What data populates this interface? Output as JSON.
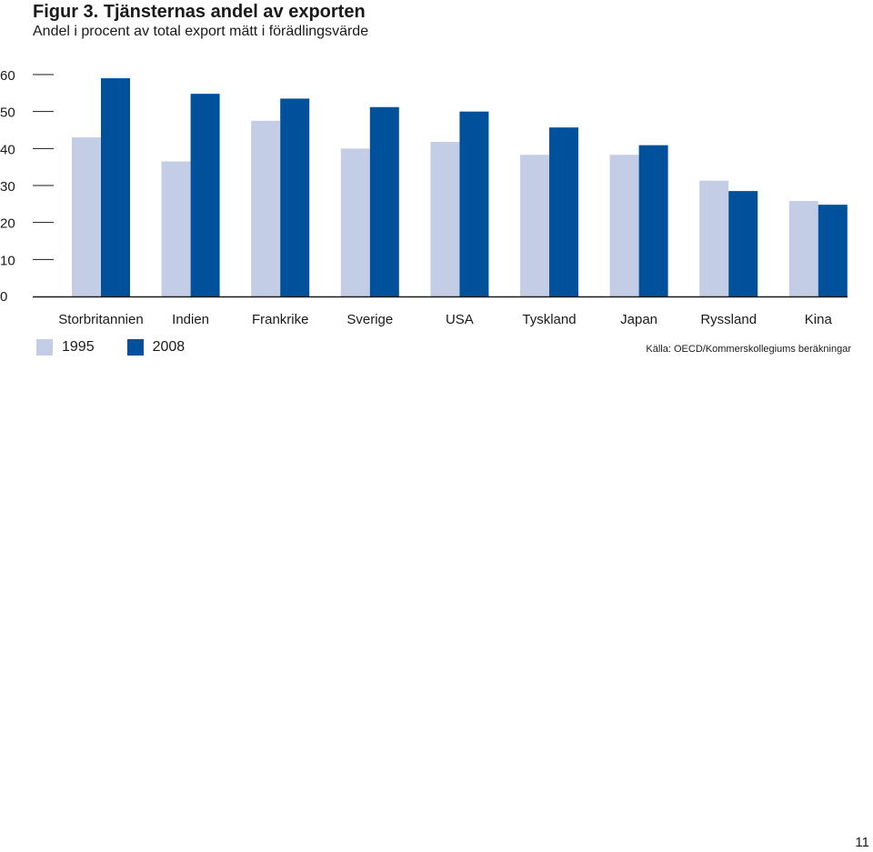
{
  "header": {
    "title": "Figur 3. Tjänsternas andel av exporten",
    "subtitle": "Andel i procent av total export mätt i förädlingsvärde"
  },
  "chart_data": {
    "type": "bar",
    "categories": [
      "Storbritannien",
      "Indien",
      "Frankrike",
      "Sverige",
      "USA",
      "Tyskland",
      "Japan",
      "Ryssland",
      "Kina"
    ],
    "series": [
      {
        "name": "1995",
        "color": "#c3cde6",
        "values": [
          43,
          36.5,
          47.5,
          40,
          41.8,
          38.3,
          38.3,
          31.3,
          25.8
        ]
      },
      {
        "name": "2008",
        "color": "#00519c",
        "values": [
          59,
          54.8,
          53.5,
          51.2,
          50,
          45.7,
          40.9,
          28.5,
          24.8
        ]
      }
    ],
    "yticks": [
      0,
      10,
      20,
      30,
      40,
      50,
      60
    ],
    "ylim": [
      0,
      60
    ],
    "legend_position": "bottom-left",
    "grid": false
  },
  "legend": {
    "items": [
      {
        "label": "1995",
        "color": "#c3cde6"
      },
      {
        "label": "2008",
        "color": "#00519c"
      }
    ]
  },
  "footer": {
    "source": "Källa: OECD/Kommerskollegiums beräkningar",
    "page_number": "11"
  }
}
